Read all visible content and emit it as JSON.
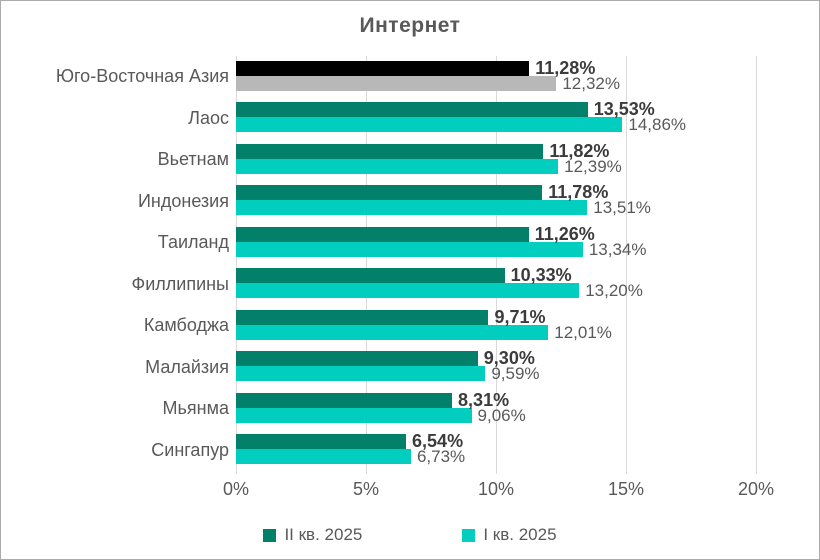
{
  "title": "Интернет",
  "colors": {
    "series1": "#028069",
    "series2": "#02cec0",
    "highlight_series1": "#000000",
    "highlight_series2": "#b8b8b8",
    "gridline": "#d9d9d9",
    "title_text": "#595959",
    "category_text": "#595959",
    "axis_text": "#595959",
    "label_bold_text": "#3b3b3b",
    "label_gray_text": "#595959",
    "frame_border": "#ababab",
    "background": "#ffffff"
  },
  "chart_data": {
    "type": "bar",
    "orientation": "horizontal",
    "title": "Интернет",
    "categories": [
      "Юго-Восточная Азия",
      "Лаос",
      "Вьетнам",
      "Индонезия",
      "Таиланд",
      "Филлипины",
      "Камбоджа",
      "Малайзия",
      "Мьянма",
      "Сингапур"
    ],
    "series": [
      {
        "name": "II кв. 2025",
        "values": [
          11.28,
          13.53,
          11.82,
          11.78,
          11.26,
          10.33,
          9.71,
          9.3,
          8.31,
          6.54
        ],
        "labels": [
          "11,28%",
          "13,53%",
          "11,82%",
          "11,78%",
          "11,26%",
          "10,33%",
          "9,71%",
          "9,30%",
          "8,31%",
          "6,54%"
        ]
      },
      {
        "name": "I кв. 2025",
        "values": [
          12.32,
          14.86,
          12.39,
          13.51,
          13.34,
          13.2,
          12.01,
          9.59,
          9.06,
          6.73
        ],
        "labels": [
          "12,32%",
          "14,86%",
          "12,39%",
          "13,51%",
          "13,34%",
          "13,20%",
          "12,01%",
          "9,59%",
          "9,06%",
          "6,73%"
        ]
      }
    ],
    "highlight": {
      "category_index": 0,
      "series1_color": "#000000",
      "series2_color": "#b8b8b8"
    },
    "xlim": [
      0,
      20
    ],
    "x_ticks": [
      {
        "value": 0,
        "label": "0%"
      },
      {
        "value": 5,
        "label": "5%"
      },
      {
        "value": 10,
        "label": "10%"
      },
      {
        "value": 15,
        "label": "15%"
      },
      {
        "value": 20,
        "label": "20%"
      }
    ],
    "grid": true,
    "legend_position": "bottom"
  },
  "legend": {
    "items": [
      {
        "label": "II кв. 2025",
        "color": "#028069"
      },
      {
        "label": "I кв. 2025",
        "color": "#02cec0"
      }
    ]
  }
}
